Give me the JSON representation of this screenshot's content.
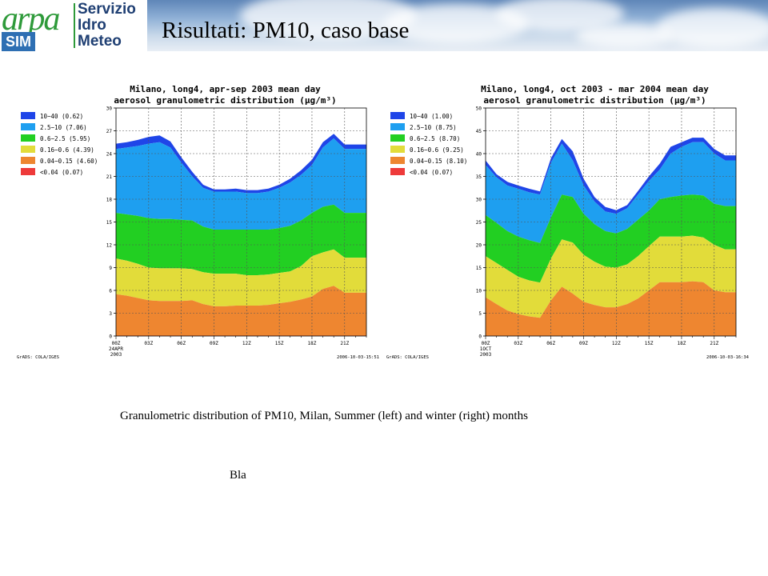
{
  "header": {
    "logo_arpa": "arpa",
    "logo_sim": "SIM",
    "logo_lines": [
      "Servizio",
      "Idro",
      "Meteo"
    ],
    "title": "Risultati: PM10, caso base"
  },
  "caption": "Granulometric distribution of PM10, Milan, Summer (left) and winter (right) months",
  "footnote": "Bla",
  "colors": {
    "10-40": "#1f45e8",
    "2.5-10": "#1e9ff0",
    "0.6-2.5": "#22cf22",
    "0.16-0.6": "#e2dc3a",
    "0.04-0.15": "#ee8630",
    "<0.04": "#ee3a3a"
  },
  "chart_data": [
    {
      "type": "area",
      "title": "Milano, long4, apr-sep 2003 mean day",
      "subtitle": "aerosol granulometric distribution (µg/m³)",
      "x_ticks": [
        "00Z\n24APR\n2003",
        "03Z",
        "06Z",
        "09Z",
        "12Z",
        "15Z",
        "18Z",
        "21Z"
      ],
      "y_ticks": [
        0,
        3,
        6,
        9,
        12,
        15,
        18,
        21,
        24,
        27,
        30
      ],
      "ylim": [
        0,
        30
      ],
      "footer_left": "GrADS: COLA/IGES",
      "footer_right": "2006-10-03-15:51",
      "legend": [
        {
          "range": "10-40",
          "value": "(0.62)"
        },
        {
          "range": "2.5-10",
          "value": "(7.06)"
        },
        {
          "range": "0.6-2.5",
          "value": "(5.95)"
        },
        {
          "range": "0.16-0.6",
          "value": "(4.39)"
        },
        {
          "range": "0.04-0.15",
          "value": "(4.60)"
        },
        {
          "range": "<0.04",
          "value": "(0.07)"
        }
      ],
      "hours": [
        0,
        1,
        2,
        3,
        4,
        5,
        6,
        7,
        8,
        9,
        10,
        11,
        12,
        13,
        14,
        15,
        16,
        17,
        18,
        19,
        20,
        21,
        22,
        23
      ],
      "cumulative": {
        "<0.04": [
          0.05,
          0.05,
          0.05,
          0.05,
          0.05,
          0.05,
          0.05,
          0.05,
          0.05,
          0.05,
          0.05,
          0.05,
          0.05,
          0.05,
          0.05,
          0.05,
          0.05,
          0.05,
          0.05,
          0.05,
          0.05,
          0.05,
          0.05,
          0.05
        ],
        "0.04-0.15": [
          5.5,
          5.3,
          5.0,
          4.7,
          4.6,
          4.6,
          4.6,
          4.7,
          4.2,
          3.9,
          3.9,
          4.0,
          4.0,
          4.0,
          4.1,
          4.3,
          4.5,
          4.8,
          5.2,
          6.2,
          6.6,
          5.7,
          5.7,
          5.7
        ],
        "0.16-0.6": [
          10.2,
          9.9,
          9.5,
          9.0,
          8.9,
          8.9,
          8.9,
          8.8,
          8.4,
          8.2,
          8.2,
          8.2,
          8.0,
          8.0,
          8.1,
          8.3,
          8.5,
          9.2,
          10.5,
          11.0,
          11.4,
          10.3,
          10.3,
          10.3
        ],
        "0.6-2.5": [
          16.2,
          16.0,
          15.8,
          15.5,
          15.4,
          15.4,
          15.3,
          15.2,
          14.4,
          14.0,
          14.0,
          14.0,
          14.0,
          14.0,
          14.0,
          14.2,
          14.5,
          15.2,
          16.2,
          17.0,
          17.3,
          16.2,
          16.2,
          16.2
        ],
        "2.5-10": [
          24.6,
          24.8,
          25.0,
          25.3,
          25.5,
          24.8,
          22.8,
          21.0,
          19.5,
          19.0,
          19.0,
          19.0,
          18.8,
          18.8,
          19.0,
          19.5,
          20.2,
          21.2,
          22.5,
          24.8,
          26.0,
          24.6,
          24.6,
          24.6
        ],
        "10-40": [
          25.3,
          25.5,
          25.8,
          26.2,
          26.4,
          25.6,
          23.5,
          21.6,
          19.9,
          19.3,
          19.3,
          19.4,
          19.2,
          19.2,
          19.4,
          19.9,
          20.7,
          21.8,
          23.2,
          25.5,
          26.6,
          25.2,
          25.2,
          25.2
        ]
      }
    },
    {
      "type": "area",
      "title": "Milano, long4, oct 2003 - mar 2004 mean day",
      "subtitle": "aerosol granulometric distribution (µg/m³)",
      "x_ticks": [
        "00Z\n1OCT\n2003",
        "03Z",
        "06Z",
        "09Z",
        "12Z",
        "15Z",
        "18Z",
        "21Z"
      ],
      "y_ticks": [
        0,
        5,
        10,
        15,
        20,
        25,
        30,
        35,
        40,
        45,
        50
      ],
      "ylim": [
        0,
        50
      ],
      "footer_left": "GrADS: COLA/IGES",
      "footer_right": "2006-10-03-16:34",
      "legend": [
        {
          "range": "10-40",
          "value": "(1.00)"
        },
        {
          "range": "2.5-10",
          "value": "(8.75)"
        },
        {
          "range": "0.6-2.5",
          "value": "(8.70)"
        },
        {
          "range": "0.16-0.6",
          "value": "(9.25)"
        },
        {
          "range": "0.04-0.15",
          "value": "(8.10)"
        },
        {
          "range": "<0.04",
          "value": "(0.07)"
        }
      ],
      "hours": [
        0,
        1,
        2,
        3,
        4,
        5,
        6,
        7,
        8,
        9,
        10,
        11,
        12,
        13,
        14,
        15,
        16,
        17,
        18,
        19,
        20,
        21,
        22,
        23
      ],
      "cumulative": {
        "<0.04": [
          0.05,
          0.05,
          0.05,
          0.05,
          0.05,
          0.05,
          0.05,
          0.05,
          0.05,
          0.05,
          0.05,
          0.05,
          0.05,
          0.05,
          0.05,
          0.05,
          0.05,
          0.05,
          0.05,
          0.05,
          0.05,
          0.05,
          0.05,
          0.05
        ],
        "0.04-0.15": [
          8.5,
          7.0,
          5.6,
          4.8,
          4.3,
          4.0,
          7.8,
          10.8,
          9.3,
          7.5,
          6.8,
          6.3,
          6.3,
          7.0,
          8.2,
          10.0,
          11.8,
          11.8,
          11.8,
          12.0,
          11.8,
          10.0,
          9.6,
          9.6
        ],
        "0.16-0.6": [
          17.5,
          16.0,
          14.5,
          13.0,
          12.2,
          11.7,
          17.0,
          21.2,
          20.5,
          17.8,
          16.3,
          15.2,
          15.0,
          15.7,
          17.5,
          19.7,
          21.8,
          21.8,
          21.8,
          22.0,
          21.6,
          20.0,
          19.0,
          19.0
        ],
        "0.6-2.5": [
          26.5,
          24.8,
          23.0,
          21.8,
          21.0,
          20.4,
          26.0,
          31.0,
          30.5,
          26.8,
          24.5,
          23.0,
          22.5,
          23.5,
          25.5,
          27.5,
          30.0,
          30.5,
          30.8,
          31.0,
          30.8,
          29.0,
          28.5,
          28.5
        ],
        "2.5-10": [
          37.5,
          34.8,
          33.0,
          32.3,
          31.5,
          31.0,
          38.0,
          42.2,
          38.5,
          33.0,
          29.5,
          27.3,
          26.8,
          28.0,
          31.0,
          34.0,
          36.5,
          40.0,
          41.5,
          42.5,
          42.5,
          40.0,
          38.5,
          38.5
        ],
        "10-40": [
          38.5,
          35.5,
          33.8,
          33.0,
          32.3,
          31.7,
          39.0,
          43.2,
          40.5,
          34.5,
          30.5,
          28.3,
          27.6,
          28.7,
          31.8,
          35.0,
          37.8,
          41.5,
          42.5,
          43.5,
          43.5,
          41.0,
          39.6,
          39.6
        ]
      }
    }
  ]
}
